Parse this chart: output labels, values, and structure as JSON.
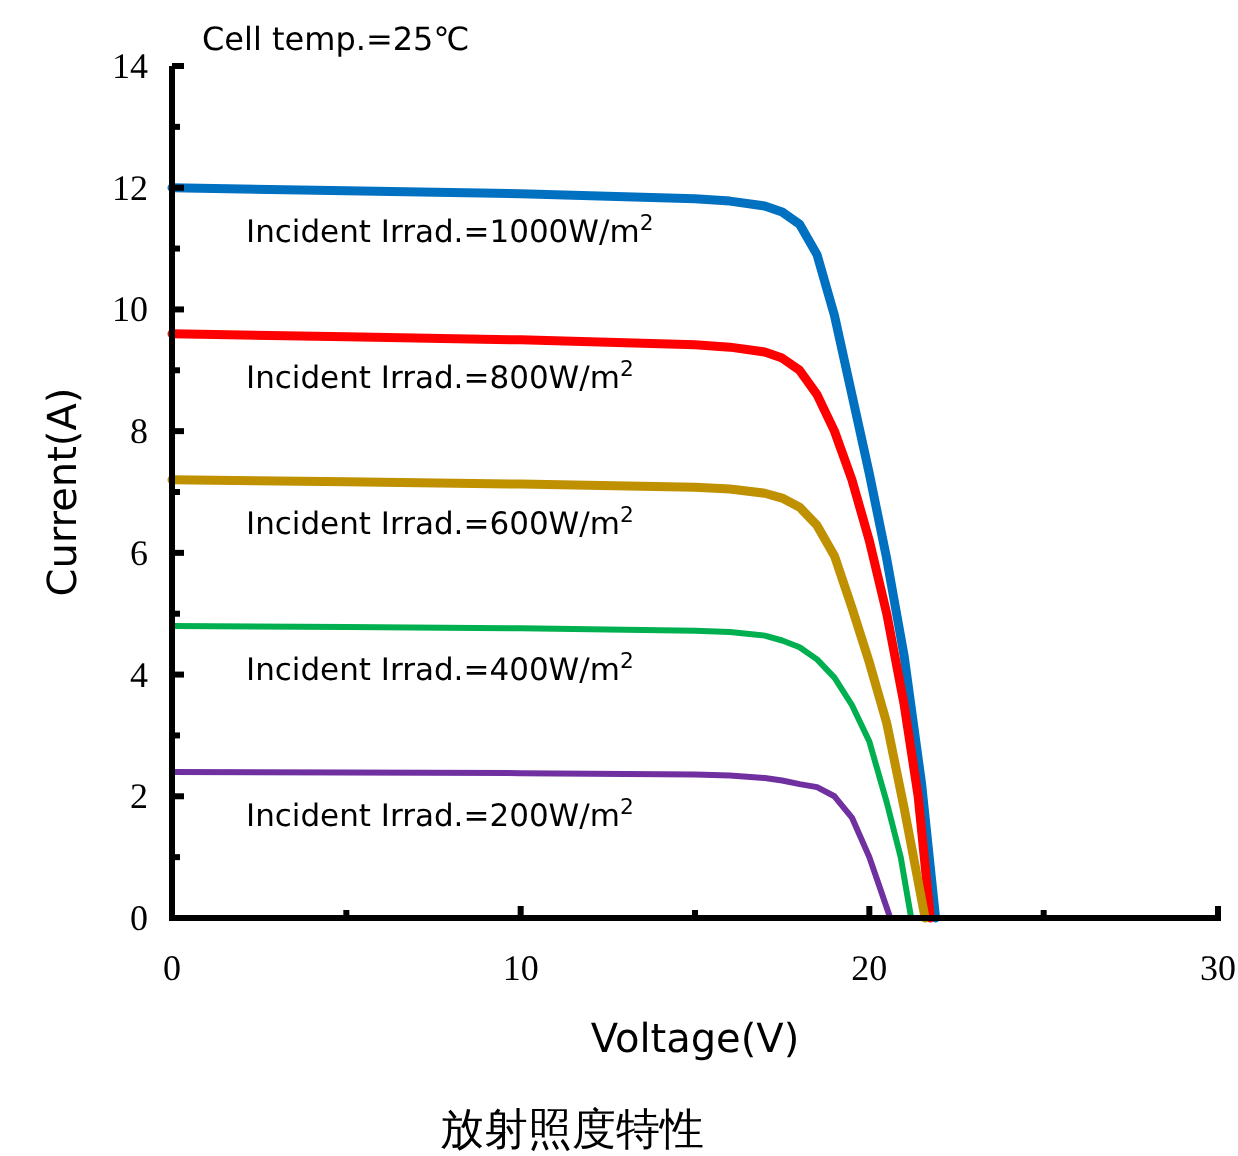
{
  "chart_data": {
    "type": "line",
    "xlabel": "Voltage(V)",
    "ylabel": "Current(A)",
    "annotations": [
      "Cell temp.=25℃",
      "放射照度特性"
    ],
    "xlim": [
      0,
      30
    ],
    "ylim": [
      0,
      14
    ],
    "xticks": [
      0,
      {
        "value": 5,
        "label": null
      },
      10,
      {
        "value": 15,
        "label": null
      },
      20,
      {
        "value": 25,
        "label": null
      },
      30
    ],
    "yticks": [
      0,
      {
        "value": 1,
        "label": null
      },
      2,
      {
        "value": 3,
        "label": null
      },
      4,
      {
        "value": 5,
        "label": null
      },
      6,
      {
        "value": 7,
        "label": null
      },
      8,
      {
        "value": 9,
        "label": null
      },
      10,
      {
        "value": 11,
        "label": null
      },
      12,
      {
        "value": 13,
        "label": null
      },
      14
    ],
    "grid": false,
    "marker": "none",
    "line_style": "solid",
    "series": [
      {
        "name": "Incident Irrad.=1000W/m$^{2}$",
        "color": "#0070c0",
        "x": [
          0,
          5,
          10,
          15,
          16,
          17,
          17.5,
          18,
          18.5,
          19,
          19.5,
          20,
          20.5,
          21,
          21.5,
          21.9
        ],
        "values": [
          12,
          11.95,
          11.9,
          11.82,
          11.78,
          11.7,
          11.6,
          11.4,
          10.9,
          9.9,
          8.6,
          7.3,
          5.9,
          4.3,
          2.2,
          0
        ]
      },
      {
        "name": "Incident Irrad.=800W/m$^{2}$",
        "color": "#ff0000",
        "x": [
          0,
          5,
          10,
          15,
          16,
          17,
          17.5,
          18,
          18.5,
          19,
          19.5,
          20,
          20.5,
          21,
          21.4,
          21.75
        ],
        "values": [
          9.6,
          9.55,
          9.5,
          9.42,
          9.38,
          9.3,
          9.2,
          9.0,
          8.6,
          8.0,
          7.2,
          6.2,
          5.0,
          3.5,
          2.0,
          0
        ]
      },
      {
        "name": "Incident Irrad.=600W/m$^{2}$",
        "color": "#bf9000",
        "x": [
          0,
          5,
          10,
          15,
          16,
          17,
          17.5,
          18,
          18.5,
          19,
          19.5,
          20,
          20.5,
          21,
          21.3,
          21.6
        ],
        "values": [
          7.2,
          7.17,
          7.13,
          7.08,
          7.05,
          6.98,
          6.9,
          6.75,
          6.45,
          5.95,
          5.1,
          4.2,
          3.2,
          1.8,
          0.9,
          0
        ]
      },
      {
        "name": "Incident Irrad.=400W/m$^{2}$",
        "color": "#00b050",
        "x": [
          0,
          5,
          10,
          15,
          16,
          17,
          17.5,
          18,
          18.5,
          19,
          19.5,
          20,
          20.5,
          20.9,
          21.2
        ],
        "values": [
          4.8,
          4.78,
          4.76,
          4.72,
          4.7,
          4.64,
          4.56,
          4.45,
          4.25,
          3.95,
          3.5,
          2.9,
          1.9,
          1.0,
          0
        ]
      },
      {
        "name": "Incident Irrad.=200W/m$^{2}$",
        "color": "#7030a0",
        "x": [
          0,
          5,
          10,
          15,
          16,
          17,
          17.5,
          18,
          18.5,
          19,
          19.5,
          20,
          20.3,
          20.6
        ],
        "values": [
          2.4,
          2.39,
          2.38,
          2.36,
          2.34,
          2.3,
          2.26,
          2.2,
          2.15,
          2.0,
          1.65,
          1.0,
          0.5,
          0
        ]
      }
    ]
  }
}
